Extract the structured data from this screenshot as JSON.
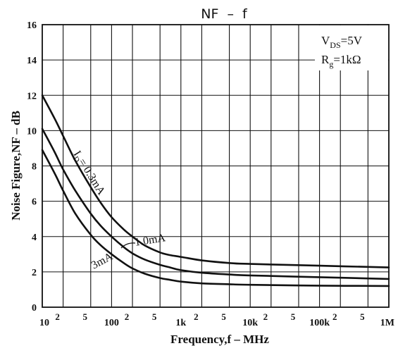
{
  "chart_data": {
    "type": "line",
    "title": "NF  –  f",
    "xlabel": "Frequency,f – MHz",
    "ylabel": "Noise Figure,NF – dB",
    "x_scale": "log",
    "xlim": [
      10,
      1000000
    ],
    "ylim": [
      0,
      16
    ],
    "grid": true,
    "y_ticks": [
      0,
      2,
      4,
      6,
      8,
      10,
      12,
      14,
      16
    ],
    "x_major_ticks": [
      {
        "value": 10,
        "label": "10"
      },
      {
        "value": 100,
        "label": "100"
      },
      {
        "value": 1000,
        "label": "1k"
      },
      {
        "value": 10000,
        "label": "10k"
      },
      {
        "value": 100000,
        "label": "100k"
      },
      {
        "value": 1000000,
        "label": "1M"
      }
    ],
    "x_minor_labels": [
      {
        "value": 20,
        "label": "2"
      },
      {
        "value": 50,
        "label": "5"
      },
      {
        "value": 200,
        "label": "2"
      },
      {
        "value": 500,
        "label": "5"
      },
      {
        "value": 2000,
        "label": "2"
      },
      {
        "value": 5000,
        "label": "5"
      },
      {
        "value": 20000,
        "label": "2"
      },
      {
        "value": 50000,
        "label": "5"
      },
      {
        "value": 200000,
        "label": "2"
      },
      {
        "value": 500000,
        "label": "5"
      }
    ],
    "conditions": {
      "vds": {
        "main": "V",
        "sub": "DS",
        "rest": "=5V"
      },
      "rg": {
        "main": "R",
        "sub": "g",
        "rest": "=1kΩ"
      }
    },
    "series": [
      {
        "name": "I_D=0.3mA",
        "label": "I_D=0.3mA",
        "x": [
          10,
          15,
          20,
          30,
          50,
          70,
          100,
          150,
          200,
          300,
          500,
          700,
          1000,
          2000,
          5000,
          10000,
          100000,
          1000000
        ],
        "y": [
          12.0,
          10.7,
          9.7,
          8.3,
          6.8,
          5.9,
          5.1,
          4.4,
          4.0,
          3.5,
          3.1,
          2.95,
          2.85,
          2.65,
          2.5,
          2.45,
          2.35,
          2.25
        ]
      },
      {
        "name": "1.0mA",
        "label": "1.0mA",
        "x": [
          10,
          15,
          20,
          30,
          50,
          70,
          100,
          150,
          200,
          300,
          500,
          700,
          1000,
          2000,
          5000,
          10000,
          100000,
          1000000
        ],
        "y": [
          10.1,
          8.8,
          7.8,
          6.6,
          5.3,
          4.6,
          4.0,
          3.4,
          3.05,
          2.7,
          2.4,
          2.25,
          2.1,
          1.95,
          1.85,
          1.8,
          1.7,
          1.6
        ]
      },
      {
        "name": "3mA",
        "label": "3mA",
        "x": [
          10,
          15,
          20,
          30,
          50,
          70,
          100,
          150,
          200,
          300,
          500,
          700,
          1000,
          2000,
          5000,
          10000,
          100000,
          1000000
        ],
        "y": [
          8.9,
          7.6,
          6.6,
          5.3,
          4.1,
          3.5,
          3.0,
          2.5,
          2.2,
          1.9,
          1.65,
          1.55,
          1.45,
          1.35,
          1.3,
          1.27,
          1.22,
          1.2
        ]
      }
    ],
    "annotations": {
      "id_main": "I",
      "id_sub": "D",
      "id_rest": "= 0.3mA",
      "mid": "1.0mA",
      "low": "3mA"
    }
  }
}
